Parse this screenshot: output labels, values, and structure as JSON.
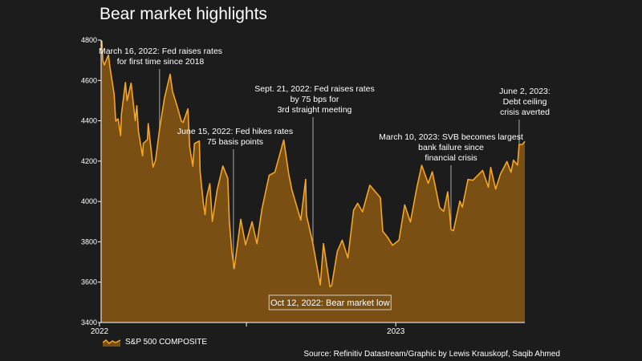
{
  "title": "Bear market highlights",
  "source": "Source: Refinitiv Datastream/Graphic by Lewis Krauskopf, Saqib Ahmed",
  "colors": {
    "background": "#1c1c1c",
    "area_fill": "#7a4f13",
    "line": "#f5a623",
    "leader": "#aaaaaa",
    "axis": "#ffffff"
  },
  "chart_data": {
    "type": "area",
    "x_unit": "trading date",
    "xlim": [
      "2022-01-03",
      "2023-06-09"
    ],
    "ylim": [
      3400,
      4800
    ],
    "yticks": [
      3400,
      3600,
      3800,
      4000,
      4200,
      4400,
      4600,
      4800
    ],
    "xticks": [
      {
        "date": "2022-01-01",
        "label": "2022",
        "minor": false
      },
      {
        "date": "2022-07-01",
        "label": "",
        "minor": true
      },
      {
        "date": "2023-01-01",
        "label": "2023",
        "minor": false
      }
    ],
    "grid": false,
    "legend": {
      "position": "bottom-left",
      "entries": [
        "S&P 500 COMPOSITE"
      ]
    },
    "series": [
      {
        "name": "S&P 500 COMPOSITE",
        "points": [
          [
            "2022-01-03",
            4797
          ],
          [
            "2022-01-04",
            4794
          ],
          [
            "2022-01-05",
            4700
          ],
          [
            "2022-01-07",
            4677
          ],
          [
            "2022-01-12",
            4726
          ],
          [
            "2022-01-14",
            4663
          ],
          [
            "2022-01-19",
            4533
          ],
          [
            "2022-01-21",
            4398
          ],
          [
            "2022-01-24",
            4410
          ],
          [
            "2022-01-27",
            4327
          ],
          [
            "2022-01-28",
            4432
          ],
          [
            "2022-02-02",
            4590
          ],
          [
            "2022-02-04",
            4500
          ],
          [
            "2022-02-09",
            4587
          ],
          [
            "2022-02-14",
            4401
          ],
          [
            "2022-02-16",
            4475
          ],
          [
            "2022-02-18",
            4348
          ],
          [
            "2022-02-23",
            4226
          ],
          [
            "2022-02-24",
            4288
          ],
          [
            "2022-03-01",
            4306
          ],
          [
            "2022-03-02",
            4386
          ],
          [
            "2022-03-08",
            4170
          ],
          [
            "2022-03-11",
            4204
          ],
          [
            "2022-03-16",
            4357
          ],
          [
            "2022-03-22",
            4512
          ],
          [
            "2022-03-29",
            4631
          ],
          [
            "2022-04-01",
            4545
          ],
          [
            "2022-04-06",
            4481
          ],
          [
            "2022-04-12",
            4397
          ],
          [
            "2022-04-14",
            4392
          ],
          [
            "2022-04-20",
            4459
          ],
          [
            "2022-04-22",
            4272
          ],
          [
            "2022-04-26",
            4175
          ],
          [
            "2022-04-28",
            4287
          ],
          [
            "2022-05-04",
            4300
          ],
          [
            "2022-05-05",
            4147
          ],
          [
            "2022-05-09",
            3991
          ],
          [
            "2022-05-11",
            3935
          ],
          [
            "2022-05-13",
            4023
          ],
          [
            "2022-05-17",
            4088
          ],
          [
            "2022-05-20",
            3901
          ],
          [
            "2022-05-26",
            4057
          ],
          [
            "2022-06-02",
            4176
          ],
          [
            "2022-06-08",
            4115
          ],
          [
            "2022-06-10",
            3901
          ],
          [
            "2022-06-13",
            3750
          ],
          [
            "2022-06-16",
            3667
          ],
          [
            "2022-06-24",
            3912
          ],
          [
            "2022-06-30",
            3785
          ],
          [
            "2022-07-08",
            3899
          ],
          [
            "2022-07-14",
            3790
          ],
          [
            "2022-07-20",
            3960
          ],
          [
            "2022-07-29",
            4130
          ],
          [
            "2022-08-05",
            4145
          ],
          [
            "2022-08-16",
            4305
          ],
          [
            "2022-08-22",
            4138
          ],
          [
            "2022-08-26",
            4058
          ],
          [
            "2022-09-06",
            3908
          ],
          [
            "2022-09-12",
            4110
          ],
          [
            "2022-09-13",
            3932
          ],
          [
            "2022-09-21",
            3789
          ],
          [
            "2022-09-30",
            3586
          ],
          [
            "2022-10-04",
            3791
          ],
          [
            "2022-10-12",
            3577
          ],
          [
            "2022-10-14",
            3583
          ],
          [
            "2022-10-21",
            3752
          ],
          [
            "2022-10-27",
            3808
          ],
          [
            "2022-11-03",
            3720
          ],
          [
            "2022-11-10",
            3956
          ],
          [
            "2022-11-15",
            3991
          ],
          [
            "2022-11-21",
            3949
          ],
          [
            "2022-11-30",
            4080
          ],
          [
            "2022-12-01",
            4076
          ],
          [
            "2022-12-13",
            4019
          ],
          [
            "2022-12-16",
            3852
          ],
          [
            "2022-12-22",
            3822
          ],
          [
            "2022-12-28",
            3783
          ],
          [
            "2023-01-05",
            3808
          ],
          [
            "2023-01-12",
            3983
          ],
          [
            "2023-01-19",
            3898
          ],
          [
            "2023-01-27",
            4070
          ],
          [
            "2023-02-02",
            4179
          ],
          [
            "2023-02-10",
            4090
          ],
          [
            "2023-02-15",
            4147
          ],
          [
            "2023-02-24",
            3970
          ],
          [
            "2023-03-01",
            3951
          ],
          [
            "2023-03-06",
            4048
          ],
          [
            "2023-03-10",
            3861
          ],
          [
            "2023-03-13",
            3855
          ],
          [
            "2023-03-21",
            4002
          ],
          [
            "2023-03-24",
            3971
          ],
          [
            "2023-03-31",
            4109
          ],
          [
            "2023-04-06",
            4105
          ],
          [
            "2023-04-18",
            4154
          ],
          [
            "2023-04-25",
            4071
          ],
          [
            "2023-04-28",
            4169
          ],
          [
            "2023-05-04",
            4061
          ],
          [
            "2023-05-10",
            4137
          ],
          [
            "2023-05-18",
            4198
          ],
          [
            "2023-05-23",
            4145
          ],
          [
            "2023-05-26",
            4205
          ],
          [
            "2023-05-31",
            4180
          ],
          [
            "2023-06-02",
            4282
          ],
          [
            "2023-06-06",
            4283
          ],
          [
            "2023-06-09",
            4298
          ]
        ]
      }
    ],
    "annotations": [
      {
        "date": "2022-03-16",
        "lines": [
          "March 16, 2022: Fed raises rates",
          "for first time since 2018"
        ]
      },
      {
        "date": "2022-06-15",
        "lines": [
          "June 15, 2022: Fed hikes rates",
          "75 basis points"
        ]
      },
      {
        "date": "2022-09-21",
        "lines": [
          "Sept. 21, 2022: Fed raises rates",
          "by 75 bps for",
          "3rd straight meeting"
        ]
      },
      {
        "date": "2023-03-10",
        "lines": [
          "March 10, 2023: SVB becomes largest",
          "bank failure since",
          "financial crisis"
        ]
      },
      {
        "date": "2023-06-02",
        "lines": [
          "June 2, 2023:",
          "Debt ceiling",
          "crisis averted"
        ]
      }
    ],
    "low_label": {
      "date": "2022-10-12",
      "text": "Oct 12, 2022: Bear market low"
    }
  }
}
